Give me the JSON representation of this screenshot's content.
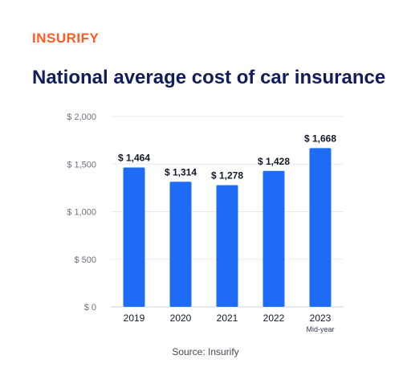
{
  "brand": {
    "logo_text": "INSURIFY",
    "logo_color": "#ff5a1f"
  },
  "source_text": "Source: Insurify",
  "chart_data": {
    "type": "bar",
    "title": "National average cost of car insurance",
    "xlabel": "",
    "ylabel": "",
    "categories": [
      "2019",
      "2020",
      "2021",
      "2022",
      "2023"
    ],
    "category_sublabels": [
      "",
      "",
      "",
      "",
      "Mid-year"
    ],
    "values": [
      1464,
      1314,
      1278,
      1428,
      1668
    ],
    "data_labels": [
      "$ 1,464",
      "$ 1,314",
      "$ 1,278",
      "$ 1,428",
      "$ 1,668"
    ],
    "ylim": [
      0,
      2000
    ],
    "yticks": [
      0,
      500,
      1000,
      1500,
      2000
    ],
    "ytick_labels": [
      "$ 0",
      "$ 500",
      "$ 1,000",
      "$ 1,500",
      "$ 2,000"
    ],
    "grid": true,
    "bar_color": "#1e6cf6",
    "title_color": "#101c5c"
  }
}
